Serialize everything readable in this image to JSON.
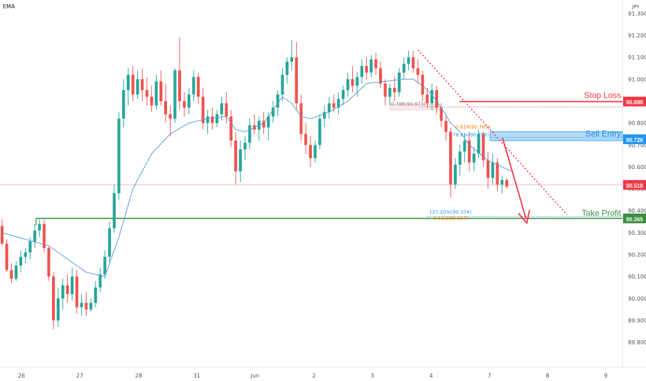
{
  "header": {
    "indicator": "EMA",
    "currency": "JPY"
  },
  "chart_data": {
    "type": "candlestick",
    "indicator": "EMA",
    "currency": "JPY",
    "ylim": [
      89.75,
      91.32
    ],
    "y_ticks": [
      "91.300",
      "91.200",
      "91.100",
      "91.000",
      "90.900",
      "90.800",
      "90.700",
      "90.600",
      "90.500",
      "90.400",
      "90.300",
      "90.200",
      "90.100",
      "90.000",
      "89.900",
      "89.800"
    ],
    "y_tick_values": [
      91.3,
      91.2,
      91.1,
      91.0,
      90.9,
      90.8,
      90.7,
      90.6,
      90.5,
      90.4,
      90.3,
      90.2,
      90.1,
      90.0,
      89.9,
      89.8
    ],
    "x_ticks": [
      "26",
      "27",
      "28",
      "31",
      "Jun",
      "2",
      "3",
      "4",
      "7",
      "8",
      "9"
    ],
    "bull_color": "#26a69a",
    "bear_color": "#ef5350",
    "ema_color": "#5b9bd5",
    "candles": [
      [
        90.33,
        90.36,
        90.24,
        90.25
      ],
      [
        90.25,
        90.27,
        90.12,
        90.13
      ],
      [
        90.13,
        90.16,
        90.07,
        90.09
      ],
      [
        90.09,
        90.17,
        90.08,
        90.15
      ],
      [
        90.15,
        90.22,
        90.12,
        90.19
      ],
      [
        90.19,
        90.23,
        90.16,
        90.21
      ],
      [
        90.21,
        90.28,
        90.18,
        90.26
      ],
      [
        90.26,
        90.34,
        90.23,
        90.31
      ],
      [
        90.31,
        90.36,
        90.28,
        90.34
      ],
      [
        90.34,
        90.36,
        90.21,
        90.23
      ],
      [
        90.23,
        90.24,
        90.08,
        90.1
      ],
      [
        90.1,
        90.12,
        89.86,
        89.9
      ],
      [
        89.9,
        90.05,
        89.87,
        90.0
      ],
      [
        90.0,
        90.09,
        89.95,
        90.06
      ],
      [
        90.06,
        90.11,
        89.98,
        90.02
      ],
      [
        90.02,
        90.14,
        89.99,
        90.1
      ],
      [
        90.1,
        90.13,
        89.93,
        89.96
      ],
      [
        89.96,
        90.02,
        89.92,
        89.98
      ],
      [
        89.98,
        90.03,
        89.92,
        89.95
      ],
      [
        89.95,
        90.0,
        89.94,
        89.98
      ],
      [
        89.98,
        90.08,
        89.96,
        90.05
      ],
      [
        90.05,
        90.14,
        90.03,
        90.11
      ],
      [
        90.11,
        90.22,
        90.09,
        90.19
      ],
      [
        90.19,
        90.35,
        90.16,
        90.32
      ],
      [
        90.32,
        90.52,
        90.3,
        90.48
      ],
      [
        90.48,
        90.85,
        90.45,
        90.82
      ],
      [
        90.82,
        91.0,
        90.78,
        90.95
      ],
      [
        90.95,
        91.05,
        90.88,
        91.02
      ],
      [
        91.02,
        91.06,
        90.9,
        90.93
      ],
      [
        90.93,
        91.04,
        90.91,
        91.0
      ],
      [
        91.0,
        91.05,
        90.9,
        90.95
      ],
      [
        90.95,
        91.01,
        90.88,
        90.92
      ],
      [
        90.92,
        90.97,
        90.85,
        90.88
      ],
      [
        90.88,
        91.02,
        90.86,
        90.99
      ],
      [
        90.99,
        91.04,
        90.88,
        90.9
      ],
      [
        90.9,
        90.98,
        90.8,
        90.84
      ],
      [
        90.84,
        90.88,
        90.74,
        90.82
      ],
      [
        90.82,
        91.05,
        90.8,
        91.04
      ],
      [
        91.04,
        91.19,
        90.86,
        90.9
      ],
      [
        90.9,
        90.94,
        90.83,
        90.87
      ],
      [
        90.87,
        90.96,
        90.84,
        90.93
      ],
      [
        90.93,
        91.04,
        90.9,
        91.01
      ],
      [
        91.01,
        91.03,
        90.89,
        90.92
      ],
      [
        90.92,
        90.96,
        90.77,
        90.8
      ],
      [
        90.8,
        90.86,
        90.75,
        90.83
      ],
      [
        90.83,
        90.87,
        90.77,
        90.8
      ],
      [
        90.8,
        90.86,
        90.78,
        90.84
      ],
      [
        90.84,
        90.92,
        90.81,
        90.89
      ],
      [
        90.89,
        90.94,
        90.8,
        90.83
      ],
      [
        90.83,
        90.86,
        90.69,
        90.72
      ],
      [
        90.72,
        90.76,
        90.52,
        90.58
      ],
      [
        90.58,
        90.72,
        90.53,
        90.68
      ],
      [
        90.68,
        90.74,
        90.63,
        90.71
      ],
      [
        90.71,
        90.82,
        90.68,
        90.79
      ],
      [
        90.79,
        90.84,
        90.75,
        90.77
      ],
      [
        90.77,
        90.83,
        90.72,
        90.81
      ],
      [
        90.81,
        90.85,
        90.75,
        90.78
      ],
      [
        90.78,
        90.85,
        90.72,
        90.83
      ],
      [
        90.83,
        90.9,
        90.8,
        90.87
      ],
      [
        90.87,
        90.95,
        90.83,
        90.93
      ],
      [
        90.93,
        91.05,
        90.9,
        91.02
      ],
      [
        91.02,
        91.1,
        90.98,
        91.08
      ],
      [
        91.08,
        91.18,
        91.04,
        91.1
      ],
      [
        91.1,
        91.17,
        90.86,
        90.89
      ],
      [
        90.89,
        90.93,
        90.72,
        90.75
      ],
      [
        90.75,
        90.8,
        90.66,
        90.7
      ],
      [
        90.7,
        90.74,
        90.6,
        90.64
      ],
      [
        90.64,
        90.72,
        90.62,
        90.7
      ],
      [
        90.7,
        90.84,
        90.68,
        90.82
      ],
      [
        90.82,
        90.88,
        90.78,
        90.85
      ],
      [
        90.85,
        90.92,
        90.82,
        90.89
      ],
      [
        90.89,
        90.93,
        90.85,
        90.87
      ],
      [
        90.87,
        90.94,
        90.84,
        90.91
      ],
      [
        90.91,
        90.97,
        90.88,
        90.95
      ],
      [
        90.95,
        91.03,
        90.92,
        91.0
      ],
      [
        91.0,
        91.06,
        90.94,
        90.97
      ],
      [
        90.97,
        91.03,
        90.92,
        91.01
      ],
      [
        91.01,
        91.09,
        90.98,
        91.06
      ],
      [
        91.06,
        91.1,
        91.0,
        91.03
      ],
      [
        91.03,
        91.11,
        91.01,
        91.09
      ],
      [
        91.09,
        91.12,
        91.02,
        91.05
      ],
      [
        91.05,
        91.08,
        90.96,
        90.98
      ],
      [
        90.98,
        91.0,
        90.88,
        90.92
      ],
      [
        90.92,
        90.98,
        90.88,
        90.96
      ],
      [
        90.96,
        91.01,
        90.9,
        90.94
      ],
      [
        90.94,
        91.05,
        90.92,
        91.03
      ],
      [
        91.03,
        91.1,
        91.0,
        91.07
      ],
      [
        91.07,
        91.13,
        91.04,
        91.1
      ],
      [
        91.1,
        91.13,
        91.03,
        91.05
      ],
      [
        91.05,
        91.09,
        90.98,
        91.02
      ],
      [
        91.02,
        91.04,
        90.9,
        90.93
      ],
      [
        90.93,
        90.96,
        90.87,
        90.89
      ],
      [
        90.89,
        90.98,
        90.86,
        90.95
      ],
      [
        90.95,
        90.97,
        90.84,
        90.87
      ],
      [
        90.87,
        90.89,
        90.78,
        90.81
      ],
      [
        90.81,
        90.84,
        90.72,
        90.76
      ],
      [
        90.76,
        90.78,
        90.46,
        90.52
      ],
      [
        90.52,
        90.64,
        90.5,
        90.61
      ],
      [
        90.61,
        90.7,
        90.56,
        90.67
      ],
      [
        90.67,
        90.75,
        90.62,
        90.72
      ],
      [
        90.72,
        90.76,
        90.58,
        90.62
      ],
      [
        90.62,
        90.69,
        90.58,
        90.66
      ],
      [
        90.66,
        90.77,
        90.64,
        90.75
      ],
      [
        90.75,
        90.76,
        90.6,
        90.63
      ],
      [
        90.63,
        90.67,
        90.5,
        90.55
      ],
      [
        90.55,
        90.66,
        90.52,
        90.62
      ],
      [
        90.62,
        90.64,
        90.49,
        90.52
      ],
      [
        90.52,
        90.56,
        90.48,
        90.54
      ],
      [
        90.54,
        90.55,
        90.5,
        90.51
      ]
    ],
    "ema": [
      [
        0,
        90.3
      ],
      [
        10,
        90.24
      ],
      [
        18,
        90.12
      ],
      [
        22,
        90.1
      ],
      [
        25,
        90.28
      ],
      [
        28,
        90.5
      ],
      [
        32,
        90.66
      ],
      [
        36,
        90.75
      ],
      [
        40,
        90.8
      ],
      [
        44,
        90.82
      ],
      [
        48,
        90.83
      ],
      [
        50,
        90.77
      ],
      [
        52,
        90.76
      ],
      [
        56,
        90.8
      ],
      [
        60,
        90.92
      ],
      [
        62,
        90.89
      ],
      [
        64,
        90.83
      ],
      [
        66,
        90.82
      ],
      [
        70,
        90.85
      ],
      [
        74,
        90.9
      ],
      [
        78,
        90.98
      ],
      [
        82,
        90.99
      ],
      [
        86,
        91.0
      ],
      [
        88,
        91.0
      ],
      [
        90,
        90.97
      ],
      [
        92,
        90.93
      ],
      [
        94,
        90.87
      ],
      [
        96,
        90.8
      ],
      [
        98,
        90.76
      ],
      [
        100,
        90.7
      ],
      [
        104,
        90.63
      ],
      [
        109,
        90.58
      ]
    ],
    "levels": {
      "stop_loss": {
        "label": "Stop Loss",
        "value": 90.898,
        "value_text": "90.898",
        "color": "#f23645"
      },
      "sell_entry": {
        "label": "Sell Entry",
        "value": 90.726,
        "value_text": "90.726",
        "color": "#2196f3"
      },
      "take_profit": {
        "label": "Take Profit",
        "value": 90.365,
        "value_text": "90.365",
        "color": "#388e3c"
      },
      "current": {
        "value": 90.518,
        "value_text": "90.518",
        "color": "#f23645"
      }
    },
    "fib_labels": [
      {
        "text": "0.786(90.873)",
        "value": 90.873,
        "color": "#787b86"
      },
      {
        "text": "0.618(90.765)",
        "value": 90.765,
        "color": "#f57c00"
      },
      {
        "text": "78.6%(90.735)",
        "value": 90.735,
        "color": "#2196f3"
      },
      {
        "text": "127.20%(90.374)",
        "value": 90.374,
        "color": "#2196f3"
      },
      {
        "text": "0.618(90.367)",
        "value": 90.367,
        "color": "#f57c00"
      }
    ]
  }
}
